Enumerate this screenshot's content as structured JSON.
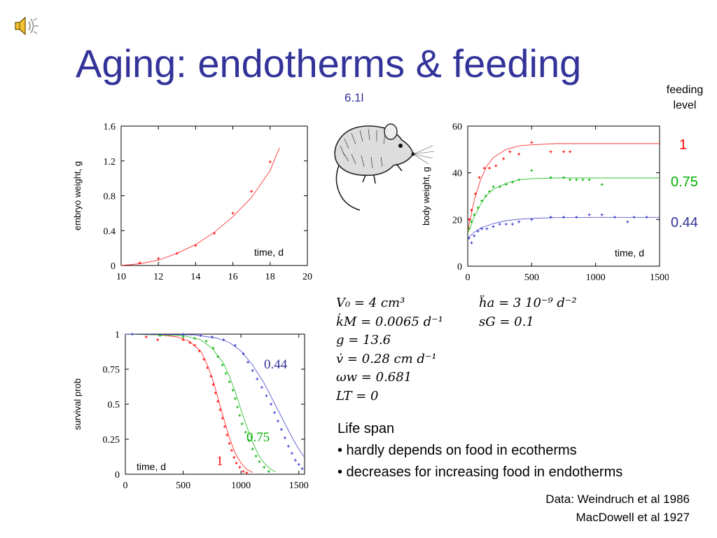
{
  "slide": {
    "title": "Aging: endotherms & feeding",
    "code": "6.1l",
    "feeding_label_1": "feeding",
    "feeding_label_2": "level",
    "levels": [
      {
        "label": "1",
        "color": "#ff0000"
      },
      {
        "label": "0.75",
        "color": "#00b000"
      },
      {
        "label": "0.44",
        "color": "#33339a"
      }
    ],
    "params_left": [
      "V₀ = 4 cm³",
      "k̇M = 0.0065 d⁻¹",
      "g = 13.6",
      "v̇ = 0.28 cm d⁻¹",
      "ωw = 0.681",
      "LT = 0"
    ],
    "params_right": [
      "ḧa = 3 10⁻⁹ d⁻²",
      "sG = 0.1"
    ],
    "lifespan_title": "Life span",
    "lifespan_bullets": [
      "• hardly depends on food in ecotherms",
      "• decreases for increasing food in endotherms"
    ],
    "refs": [
      "Data: Weindruch et al 1986",
      "MacDowell et al 1927"
    ],
    "icons": {
      "speaker": "speaker-icon",
      "mouse": "mouse-illustration"
    }
  },
  "chart_data": [
    {
      "type": "scatter",
      "xlabel": "time, d",
      "ylabel": "embryo weight, g",
      "xlim": [
        10,
        20
      ],
      "ylim": [
        0,
        1.6
      ],
      "xticks": [
        "10",
        "12",
        "14",
        "16",
        "18",
        "20"
      ],
      "yticks": [
        "0",
        "0.4",
        "0.8",
        "1.2",
        "1.6"
      ],
      "series": [
        {
          "color": "#ff0000",
          "points": [
            [
              11,
              0.03
            ],
            [
              12,
              0.08
            ],
            [
              13,
              0.14
            ],
            [
              14,
              0.23
            ],
            [
              15,
              0.37
            ],
            [
              16,
              0.6
            ],
            [
              17,
              0.85
            ],
            [
              18,
              1.19
            ]
          ],
          "curve": [
            [
              10,
              0.0
            ],
            [
              11,
              0.02
            ],
            [
              12,
              0.06
            ],
            [
              13,
              0.14
            ],
            [
              14,
              0.24
            ],
            [
              15,
              0.38
            ],
            [
              16,
              0.56
            ],
            [
              17,
              0.78
            ],
            [
              18,
              1.09
            ],
            [
              18.5,
              1.35
            ]
          ]
        }
      ]
    },
    {
      "type": "scatter",
      "xlabel": "time, d",
      "ylabel": "body weight, g",
      "xlim": [
        0,
        1500
      ],
      "ylim": [
        0,
        60
      ],
      "xticks": [
        "0",
        "500",
        "1000",
        "1500"
      ],
      "yticks": [
        "0",
        "20",
        "40",
        "60"
      ],
      "series": [
        {
          "name": "1",
          "color": "#ff0000",
          "points": [
            [
              10,
              20
            ],
            [
              30,
              24
            ],
            [
              60,
              31
            ],
            [
              90,
              38
            ],
            [
              130,
              42
            ],
            [
              170,
              42
            ],
            [
              220,
              43
            ],
            [
              280,
              46
            ],
            [
              330,
              49
            ],
            [
              400,
              48
            ],
            [
              500,
              53
            ],
            [
              650,
              49
            ],
            [
              750,
              49
            ],
            [
              800,
              49
            ]
          ],
          "curve": [
            [
              0,
              15
            ],
            [
              50,
              28
            ],
            [
              100,
              37
            ],
            [
              150,
              43
            ],
            [
              200,
              46.5
            ],
            [
              300,
              50
            ],
            [
              400,
              51.5
            ],
            [
              500,
              52
            ],
            [
              700,
              52.5
            ],
            [
              1000,
              52.5
            ],
            [
              1500,
              52.5
            ]
          ]
        },
        {
          "name": "0.75",
          "color": "#00b000",
          "points": [
            [
              10,
              16
            ],
            [
              30,
              19
            ],
            [
              50,
              22
            ],
            [
              80,
              25
            ],
            [
              110,
              28
            ],
            [
              140,
              30
            ],
            [
              170,
              32
            ],
            [
              200,
              34
            ],
            [
              250,
              34
            ],
            [
              300,
              35
            ],
            [
              350,
              36
            ],
            [
              400,
              37
            ],
            [
              500,
              41
            ],
            [
              650,
              38
            ],
            [
              750,
              38
            ],
            [
              800,
              37
            ],
            [
              850,
              37
            ],
            [
              900,
              37
            ],
            [
              950,
              37
            ],
            [
              1050,
              35
            ]
          ],
          "curve": [
            [
              0,
              14
            ],
            [
              50,
              21
            ],
            [
              100,
              26.5
            ],
            [
              150,
              30.5
            ],
            [
              200,
              33
            ],
            [
              300,
              35.5
            ],
            [
              400,
              37
            ],
            [
              500,
              37.5
            ],
            [
              700,
              37.8
            ],
            [
              1000,
              37.8
            ],
            [
              1500,
              37.8
            ]
          ]
        },
        {
          "name": "0.44",
          "color": "#3333cc",
          "points": [
            [
              10,
              12
            ],
            [
              30,
              10
            ],
            [
              50,
              13
            ],
            [
              80,
              15
            ],
            [
              110,
              16
            ],
            [
              150,
              16
            ],
            [
              200,
              17
            ],
            [
              250,
              18
            ],
            [
              300,
              18
            ],
            [
              350,
              18
            ],
            [
              400,
              19
            ],
            [
              500,
              20
            ],
            [
              650,
              21
            ],
            [
              750,
              21
            ],
            [
              850,
              21
            ],
            [
              950,
              22
            ],
            [
              1050,
              22
            ],
            [
              1150,
              21
            ],
            [
              1250,
              19
            ],
            [
              1300,
              21
            ],
            [
              1400,
              21
            ]
          ],
          "curve": [
            [
              0,
              12
            ],
            [
              50,
              14.5
            ],
            [
              100,
              16.3
            ],
            [
              200,
              18.3
            ],
            [
              300,
              19.5
            ],
            [
              400,
              20.1
            ],
            [
              500,
              20.5
            ],
            [
              700,
              20.8
            ],
            [
              1000,
              20.9
            ],
            [
              1500,
              20.9
            ]
          ]
        }
      ]
    },
    {
      "type": "scatter",
      "xlabel": "time, d",
      "ylabel": "survival prob",
      "xlim": [
        0,
        1550
      ],
      "ylim": [
        0,
        1
      ],
      "xticks": [
        "0",
        "500",
        "1000",
        "1500"
      ],
      "yticks": [
        "0",
        "0.25",
        "0.5",
        "0.75",
        "1"
      ],
      "series": [
        {
          "name": "1",
          "color": "#ff0000",
          "points": [
            [
              60,
              1
            ],
            [
              180,
              0.98
            ],
            [
              280,
              0.96
            ],
            [
              500,
              0.96
            ],
            [
              560,
              0.94
            ],
            [
              600,
              0.92
            ],
            [
              640,
              0.88
            ],
            [
              680,
              0.82
            ],
            [
              710,
              0.76
            ],
            [
              740,
              0.7
            ],
            [
              760,
              0.64
            ],
            [
              780,
              0.58
            ],
            [
              800,
              0.52
            ],
            [
              820,
              0.46
            ],
            [
              840,
              0.4
            ],
            [
              860,
              0.34
            ],
            [
              880,
              0.28
            ],
            [
              900,
              0.22
            ],
            [
              920,
              0.17
            ],
            [
              940,
              0.12
            ],
            [
              960,
              0.08
            ],
            [
              990,
              0.05
            ],
            [
              1020,
              0.02
            ],
            [
              1050,
              0.01
            ]
          ],
          "curve": [
            [
              0,
              1
            ],
            [
              300,
              0.995
            ],
            [
              450,
              0.98
            ],
            [
              550,
              0.95
            ],
            [
              650,
              0.88
            ],
            [
              700,
              0.8
            ],
            [
              750,
              0.69
            ],
            [
              800,
              0.55
            ],
            [
              850,
              0.4
            ],
            [
              900,
              0.26
            ],
            [
              950,
              0.15
            ],
            [
              1000,
              0.08
            ],
            [
              1050,
              0.035
            ],
            [
              1100,
              0.013
            ]
          ]
        },
        {
          "name": "0.75",
          "color": "#00b000",
          "points": [
            [
              60,
              1
            ],
            [
              300,
              0.99
            ],
            [
              500,
              0.98
            ],
            [
              600,
              0.97
            ],
            [
              700,
              0.95
            ],
            [
              760,
              0.9
            ],
            [
              800,
              0.84
            ],
            [
              840,
              0.78
            ],
            [
              870,
              0.72
            ],
            [
              900,
              0.66
            ],
            [
              930,
              0.6
            ],
            [
              950,
              0.54
            ],
            [
              970,
              0.48
            ],
            [
              990,
              0.42
            ],
            [
              1010,
              0.36
            ],
            [
              1040,
              0.3
            ],
            [
              1070,
              0.24
            ],
            [
              1100,
              0.18
            ],
            [
              1130,
              0.13
            ],
            [
              1160,
              0.09
            ],
            [
              1200,
              0.05
            ],
            [
              1240,
              0.02
            ]
          ],
          "curve": [
            [
              0,
              1
            ],
            [
              500,
              0.99
            ],
            [
              650,
              0.96
            ],
            [
              750,
              0.9
            ],
            [
              850,
              0.79
            ],
            [
              900,
              0.7
            ],
            [
              950,
              0.59
            ],
            [
              1000,
              0.46
            ],
            [
              1050,
              0.34
            ],
            [
              1100,
              0.23
            ],
            [
              1150,
              0.14
            ],
            [
              1200,
              0.08
            ],
            [
              1250,
              0.04
            ],
            [
              1300,
              0.015
            ]
          ]
        },
        {
          "name": "0.44",
          "color": "#3333cc",
          "points": [
            [
              60,
              1
            ],
            [
              500,
              1
            ],
            [
              650,
              0.99
            ],
            [
              750,
              0.98
            ],
            [
              850,
              0.96
            ],
            [
              950,
              0.92
            ],
            [
              1020,
              0.86
            ],
            [
              1060,
              0.8
            ],
            [
              1100,
              0.74
            ],
            [
              1140,
              0.68
            ],
            [
              1180,
              0.62
            ],
            [
              1220,
              0.56
            ],
            [
              1260,
              0.5
            ],
            [
              1290,
              0.44
            ],
            [
              1320,
              0.38
            ],
            [
              1350,
              0.32
            ],
            [
              1380,
              0.26
            ],
            [
              1410,
              0.2
            ],
            [
              1440,
              0.15
            ],
            [
              1470,
              0.1
            ],
            [
              1500,
              0.07
            ],
            [
              1530,
              0.04
            ]
          ],
          "curve": [
            [
              0,
              1
            ],
            [
              600,
              0.995
            ],
            [
              800,
              0.97
            ],
            [
              900,
              0.94
            ],
            [
              1000,
              0.88
            ],
            [
              1100,
              0.78
            ],
            [
              1200,
              0.65
            ],
            [
              1300,
              0.49
            ],
            [
              1350,
              0.41
            ],
            [
              1400,
              0.33
            ],
            [
              1450,
              0.25
            ],
            [
              1500,
              0.18
            ],
            [
              1550,
              0.12
            ]
          ]
        }
      ]
    }
  ]
}
